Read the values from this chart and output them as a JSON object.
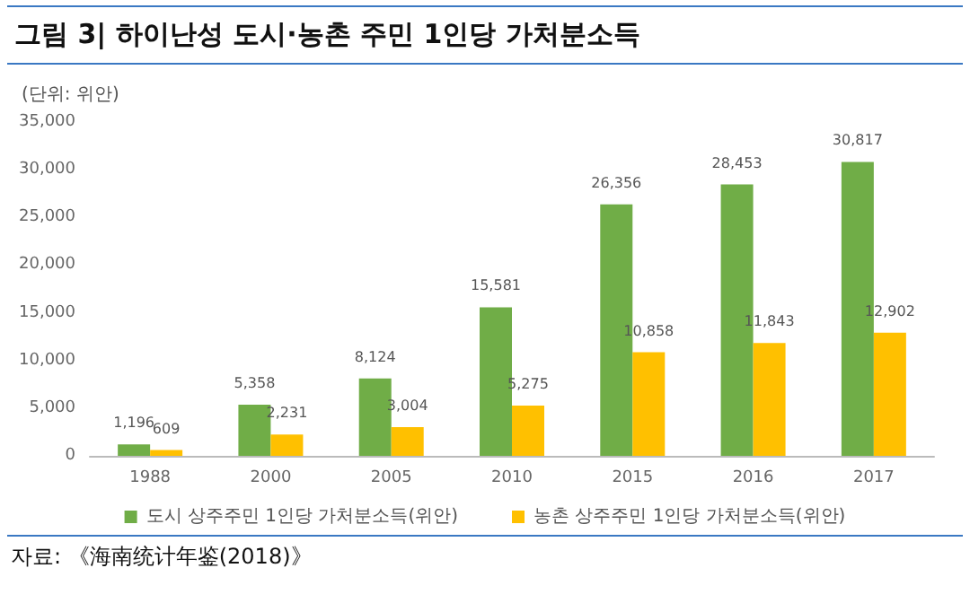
{
  "chart_data": {
    "type": "bar",
    "title": "그림 3| 하이난성 도시·농촌 주민 1인당 가처분소득",
    "ylabel": "(단위: 위안)",
    "categories": [
      "1988",
      "2000",
      "2005",
      "2010",
      "2015",
      "2016",
      "2017"
    ],
    "series": [
      {
        "name": "도시 상주주민 1인당 가처분소득(위안)",
        "color": "#70ad47",
        "values": [
          1196,
          5358,
          8124,
          15581,
          26356,
          28453,
          30817
        ],
        "value_labels": [
          "1,196",
          "5,358",
          "8,124",
          "15,581",
          "26,356",
          "28,453",
          "30,817"
        ]
      },
      {
        "name": "농촌 상주주민 1인당 가처분소득(위안)",
        "color": "#ffc000",
        "values": [
          609,
          2231,
          3004,
          5275,
          10858,
          11843,
          12902
        ],
        "value_labels": [
          "609",
          "2,231",
          "3,004",
          "5,275",
          "10,858",
          "11,843",
          "12,902"
        ]
      }
    ],
    "ylim": [
      0,
      35000
    ],
    "yticks": [
      0,
      {
        "value": 5000,
        "label": "5,000"
      },
      {
        "value": 10000,
        "label": "10,000"
      },
      {
        "value": 15000,
        "label": "15,000"
      },
      {
        "value": 20000,
        "label": "20,000"
      },
      {
        "value": 25000,
        "label": "25,000"
      },
      {
        "value": 30000,
        "label": "30,000"
      },
      {
        "value": 35000,
        "label": "35,000"
      }
    ],
    "grid": false,
    "legend": "bottom",
    "annotations": [
      "자료: 《海南统计年鉴(2018)》"
    ]
  }
}
